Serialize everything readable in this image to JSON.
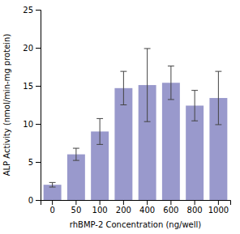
{
  "chart_data": {
    "type": "bar",
    "categories": [
      "0",
      "50",
      "100",
      "200",
      "400",
      "600",
      "800",
      "1000"
    ],
    "values": [
      2.0,
      6.0,
      9.0,
      14.7,
      15.1,
      15.4,
      12.4,
      13.4
    ],
    "errors": [
      0.3,
      0.8,
      1.7,
      2.2,
      4.8,
      2.2,
      2.0,
      3.5
    ],
    "color": "#9999cc",
    "xlabel": "rhBMP-2 Concentration (ng/well)",
    "ylabel": "ALP Activity (nmol/min-mg protein)",
    "ylim": [
      0,
      25
    ],
    "yticks": [
      0,
      5,
      10,
      15,
      20,
      25
    ],
    "grid": false
  }
}
